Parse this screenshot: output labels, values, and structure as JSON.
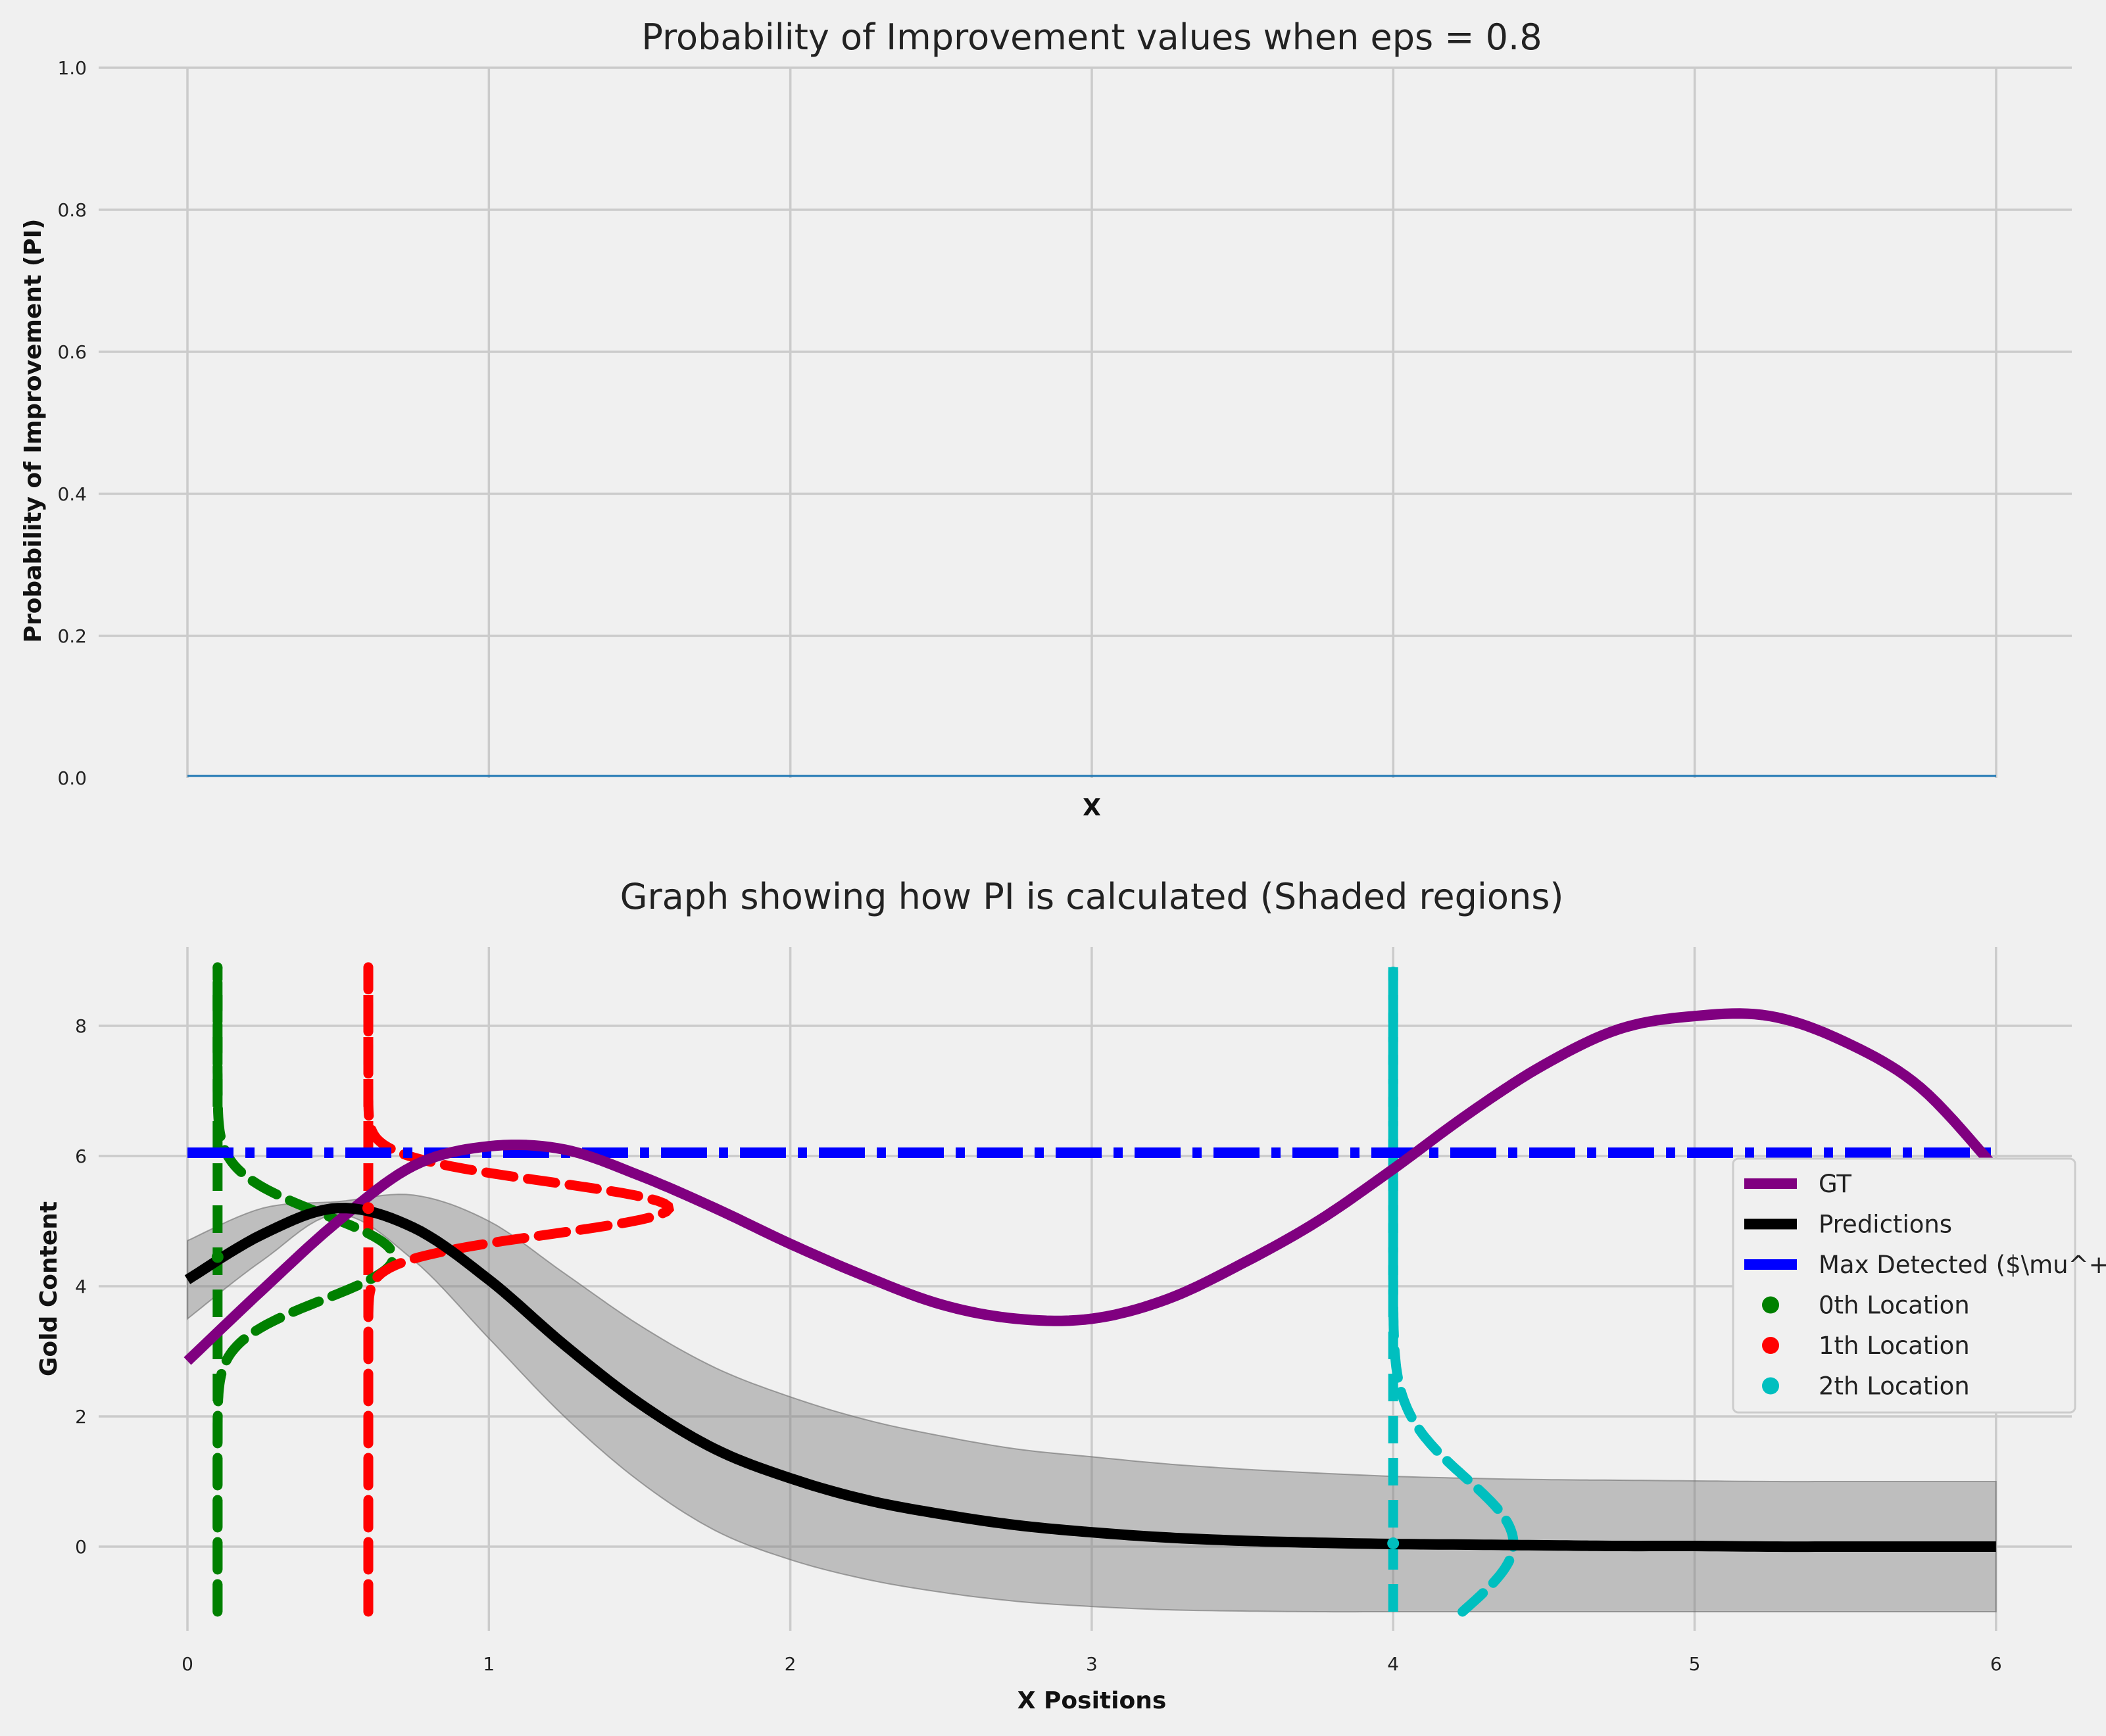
{
  "chart_data": [
    {
      "type": "line",
      "title": "Probability of Improvement values when eps = 0.8",
      "xlabel": "X",
      "ylabel": "Probability of Improvement (PI)",
      "xlim": [
        0,
        6
      ],
      "ylim": [
        0,
        1.0
      ],
      "xgrid": [
        0,
        1,
        2,
        3,
        4,
        5,
        6
      ],
      "xticks_shown": false,
      "yticks": [
        "0.0",
        "0.2",
        "0.4",
        "0.6",
        "0.8",
        "1.0"
      ],
      "grid": true,
      "line_color": "#1f77b4",
      "series": [
        {
          "x": [
            0,
            6
          ],
          "y": [
            0.0,
            0.0
          ]
        }
      ]
    },
    {
      "type": "line",
      "title": "Graph showing how PI is calculated (Shaded regions)",
      "xlabel": "X Positions",
      "ylabel": "Gold Content",
      "xlim": [
        -0.3,
        6.25
      ],
      "ylim": [
        -1.1,
        9.0
      ],
      "xticks": [
        "0",
        "1",
        "2",
        "3",
        "4",
        "5",
        "6"
      ],
      "yticks": [
        "0",
        "2",
        "4",
        "6",
        "8"
      ],
      "grid": true,
      "legend_placement": "center-right",
      "legend": [
        {
          "label": "GT",
          "kind": "line",
          "color": "#800080"
        },
        {
          "label": "Predictions",
          "kind": "line",
          "color": "#000000"
        },
        {
          "label": "Max Detected ($\\mu^+$)",
          "kind": "line",
          "color": "#0000ff"
        },
        {
          "label": "0th Location",
          "kind": "dot",
          "color": "#008000"
        },
        {
          "label": "1th Location",
          "kind": "dot",
          "color": "#ff0000"
        },
        {
          "label": "2th Location",
          "kind": "dot",
          "color": "#00bfbf"
        }
      ],
      "max_detected": 6.05,
      "gt": {
        "color": "#800080",
        "x": [
          0,
          0.25,
          0.5,
          0.75,
          1.0,
          1.25,
          1.5,
          1.75,
          2.0,
          2.25,
          2.5,
          2.75,
          3.0,
          3.25,
          3.5,
          3.75,
          4.0,
          4.25,
          4.5,
          4.75,
          5.0,
          5.25,
          5.5,
          5.75,
          6.0
        ],
        "y": [
          2.85,
          3.95,
          5.0,
          5.85,
          6.15,
          6.1,
          5.7,
          5.2,
          4.65,
          4.15,
          3.72,
          3.5,
          3.5,
          3.8,
          4.35,
          5.0,
          5.8,
          6.65,
          7.4,
          7.95,
          8.15,
          8.15,
          7.75,
          7.05,
          5.8
        ]
      },
      "predictions": {
        "color": "#000000",
        "x": [
          0,
          0.25,
          0.5,
          0.75,
          1.0,
          1.25,
          1.5,
          1.75,
          2.0,
          2.25,
          2.5,
          2.75,
          3.0,
          3.25,
          3.5,
          3.75,
          4.0,
          4.25,
          4.5,
          4.75,
          5.0,
          5.25,
          5.5,
          5.75,
          6.0
        ],
        "y": [
          4.1,
          4.8,
          5.2,
          4.9,
          4.1,
          3.1,
          2.2,
          1.5,
          1.05,
          0.72,
          0.5,
          0.33,
          0.22,
          0.14,
          0.09,
          0.06,
          0.04,
          0.03,
          0.02,
          0.01,
          0.01,
          0.0,
          0.0,
          0.0,
          0.0
        ],
        "band_upper": [
          4.7,
          5.2,
          5.3,
          5.4,
          5.0,
          4.2,
          3.4,
          2.75,
          2.3,
          1.95,
          1.7,
          1.5,
          1.38,
          1.27,
          1.19,
          1.13,
          1.08,
          1.05,
          1.03,
          1.02,
          1.01,
          1.0,
          1.0,
          1.0,
          1.0
        ],
        "band_lower": [
          3.5,
          4.4,
          5.1,
          4.4,
          3.2,
          2.0,
          1.0,
          0.25,
          -0.2,
          -0.5,
          -0.7,
          -0.84,
          -0.92,
          -0.97,
          -0.99,
          -1.0,
          -1.0,
          -1.0,
          -1.0,
          -1.0,
          -1.0,
          -1.0,
          -1.0,
          -1.0,
          -1.0
        ]
      },
      "locations": [
        {
          "name": "0th Location",
          "color": "#008000",
          "x": 0.1,
          "y": 4.45,
          "curve_scale": 0.95,
          "mu": 4.45,
          "sigma": 0.65
        },
        {
          "name": "1th Location",
          "color": "#ff0000",
          "x": 0.6,
          "y": 5.2,
          "curve_scale": 1.0,
          "mu": 5.2,
          "sigma": 0.4
        },
        {
          "name": "2th Location",
          "color": "#00bfbf",
          "x": 4.0,
          "y": 0.05,
          "curve_scale": 1.0,
          "mu": 0.05,
          "sigma": 1.0
        }
      ],
      "location_vline_range": [
        -1.0,
        8.9
      ]
    }
  ]
}
